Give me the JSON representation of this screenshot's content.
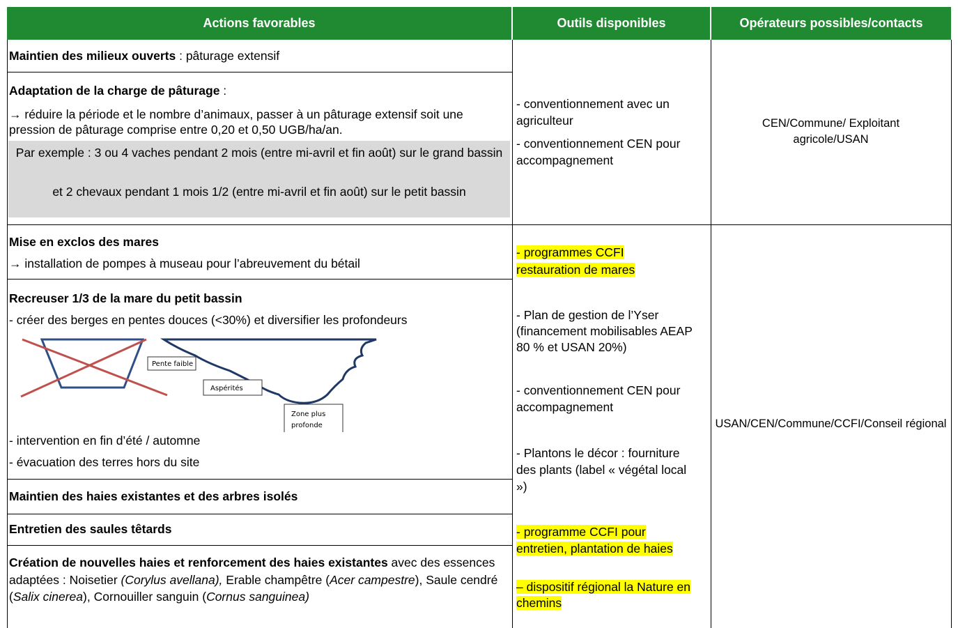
{
  "header": {
    "actions": "Actions favorables",
    "tools": "Outils disponibles",
    "operators": "Opérateurs possibles/contacts"
  },
  "groups": [
    {
      "actions": [
        {
          "title": "Maintien des milieux ouverts",
          "title_suffix": " : pâturage extensif"
        },
        {
          "title": "Adaptation de la charge de pâturage",
          "title_suffix": "  :",
          "lines": [
            "→ réduire la période et le nombre d’animaux, passer à un pâturage extensif soit une pression de pâturage comprise entre 0,20 et 0,50 UGB/ha/an."
          ],
          "examples": [
            "Par exemple : 3 ou 4 vaches pendant 2 mois (entre mi-avril et fin août) sur le grand bassin",
            "et  2 chevaux pendant 1 mois 1/2  (entre mi-avril et fin août)  sur le petit bassin"
          ]
        }
      ],
      "tools": [
        "- conventionnement avec un agriculteur",
        "- conventionnement CEN pour accompagnement"
      ],
      "operators": "CEN/Commune/ Exploitant agricole/USAN"
    },
    {
      "actions": [
        {
          "title": "Mise en exclos des mares",
          "lines": [
            "→ installation de pompes à museau pour l’abreuvement du bétail"
          ]
        },
        {
          "title": "Recreuser 1/3 de la mare du petit bassin",
          "lines": [
            "- créer des berges en pentes douces (<30%) et diversifier les profondeurs"
          ],
          "diagram": [
            "Pente faible",
            "Aspérités",
            "Zone plus",
            "profonde"
          ],
          "lines_after": [
            "- intervention en fin d’été / automne",
            "- évacuation des terres hors du site"
          ]
        },
        {
          "title": "Maintien des haies existantes et des arbres isolés"
        },
        {
          "title": "Entretien des saules têtards"
        },
        {
          "segments": [
            "Création de nouvelles haies et renforcement des haies existantes",
            " avec des essences adaptées : Noisetier ",
            "(Corylus avellana),",
            " Erable champêtre (",
            "Acer campestre",
            "),",
            " Saule cendré (",
            "Salix cinerea",
            "), Cornouiller sanguin (",
            "Cornus sanguinea)"
          ]
        }
      ],
      "tools": [
        "- programmes CCFI restauration de mares",
        "- Plan de gestion de l’Yser (financement mobilisables AEAP 80 % et USAN 20%)",
        "- conventionnement CEN pour accompagnement",
        "- Plantons le décor : fourniture des plants (label « végétal local »)",
        "- programme CCFI pour entretien, plantation de haies",
        "– dispositif régional la Nature en chemins"
      ],
      "operators": "USAN/CEN/Commune/CCFI/Conseil régional"
    }
  ]
}
